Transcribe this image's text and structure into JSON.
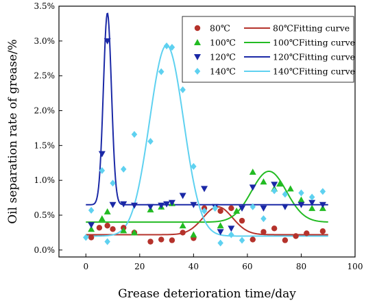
{
  "chart_data": {
    "type": "scatter",
    "title": "",
    "xlabel": "Grease deterioration time/day",
    "ylabel": "Oil separation rate of grease/%",
    "xlim": [
      -10,
      100
    ],
    "ylim": [
      -0.1,
      3.5
    ],
    "x_ticks": [
      0,
      20,
      40,
      60,
      80,
      100
    ],
    "x_tick_labels": [
      "0",
      "20",
      "40",
      "60",
      "80",
      "100"
    ],
    "y_ticks": [
      0.0,
      0.5,
      1.0,
      1.5,
      2.0,
      2.5,
      3.0,
      3.5
    ],
    "y_tick_labels": [
      "0.0%",
      "0.5%",
      "1.0%",
      "1.5%",
      "2.0%",
      "2.5%",
      "3.0%",
      "3.5%"
    ],
    "grid": false,
    "legend_position": "top-right",
    "series": [
      {
        "name": "80℃",
        "color": "#b5322b",
        "marker": "circle",
        "x": [
          2,
          5,
          8,
          10,
          14,
          18,
          24,
          28,
          32,
          36,
          40,
          44,
          50,
          54,
          58,
          62,
          66,
          70,
          74,
          78,
          82,
          88
        ],
        "y": [
          0.18,
          0.32,
          0.35,
          0.3,
          0.32,
          0.25,
          0.12,
          0.15,
          0.14,
          0.25,
          0.17,
          0.6,
          0.56,
          0.6,
          0.42,
          0.15,
          0.26,
          0.31,
          0.14,
          0.2,
          0.24,
          0.27
        ],
        "fit_name": "80℃Fitting curve",
        "fit_params": {
          "base": 0.22,
          "amplitude": 0.4,
          "center": 49,
          "sigma": 5.5
        }
      },
      {
        "name": "100℃",
        "color": "#22bb22",
        "marker": "triangle-up",
        "x": [
          2,
          6,
          8,
          14,
          18,
          24,
          28,
          32,
          36,
          40,
          50,
          56,
          62,
          66,
          70,
          72,
          76,
          80,
          84,
          88
        ],
        "y": [
          0.3,
          0.45,
          0.55,
          0.28,
          0.25,
          0.58,
          0.62,
          0.67,
          0.35,
          0.22,
          0.35,
          0.56,
          1.12,
          0.98,
          0.88,
          0.95,
          0.88,
          0.72,
          0.6,
          0.6
        ],
        "fit_name": "100℃Fitting curve",
        "fit_params": {
          "base": 0.4,
          "amplitude": 0.73,
          "center": 68,
          "sigma": 6.5
        }
      },
      {
        "name": "120℃",
        "color": "#1a28a6",
        "marker": "triangle-down",
        "x": [
          2,
          6,
          8,
          10,
          14,
          18,
          24,
          28,
          30,
          32,
          36,
          40,
          44,
          48,
          50,
          54,
          58,
          62,
          66,
          70,
          74,
          80,
          84,
          88
        ],
        "y": [
          0.36,
          1.38,
          3.0,
          0.65,
          0.66,
          0.64,
          0.62,
          0.64,
          0.66,
          0.68,
          0.78,
          0.65,
          0.88,
          0.62,
          0.26,
          0.31,
          0.6,
          0.9,
          0.6,
          0.94,
          0.62,
          0.65,
          0.68,
          0.65
        ],
        "fit_name": "120℃Fitting curve",
        "fit_params": {
          "base": 0.65,
          "amplitude": 2.75,
          "center": 8,
          "sigma": 1.5
        }
      },
      {
        "name": "140℃",
        "color": "#5ed1f0",
        "marker": "diamond",
        "x": [
          0,
          2,
          6,
          8,
          10,
          14,
          18,
          24,
          28,
          30,
          32,
          36,
          40,
          44,
          48,
          50,
          54,
          58,
          62,
          66,
          70,
          74,
          80,
          84,
          88
        ],
        "y": [
          0.18,
          0.57,
          1.14,
          0.12,
          0.96,
          1.16,
          1.66,
          1.56,
          2.56,
          2.93,
          2.91,
          2.3,
          1.2,
          0.56,
          0.6,
          0.1,
          0.22,
          0.14,
          0.62,
          0.45,
          0.85,
          0.8,
          0.82,
          0.76,
          0.84
        ],
        "fit_name": "140℃Fitting curve",
        "fit_params": {
          "base": 0.2,
          "amplitude": 2.74,
          "center": 30,
          "sigma": 6.3
        }
      }
    ]
  }
}
